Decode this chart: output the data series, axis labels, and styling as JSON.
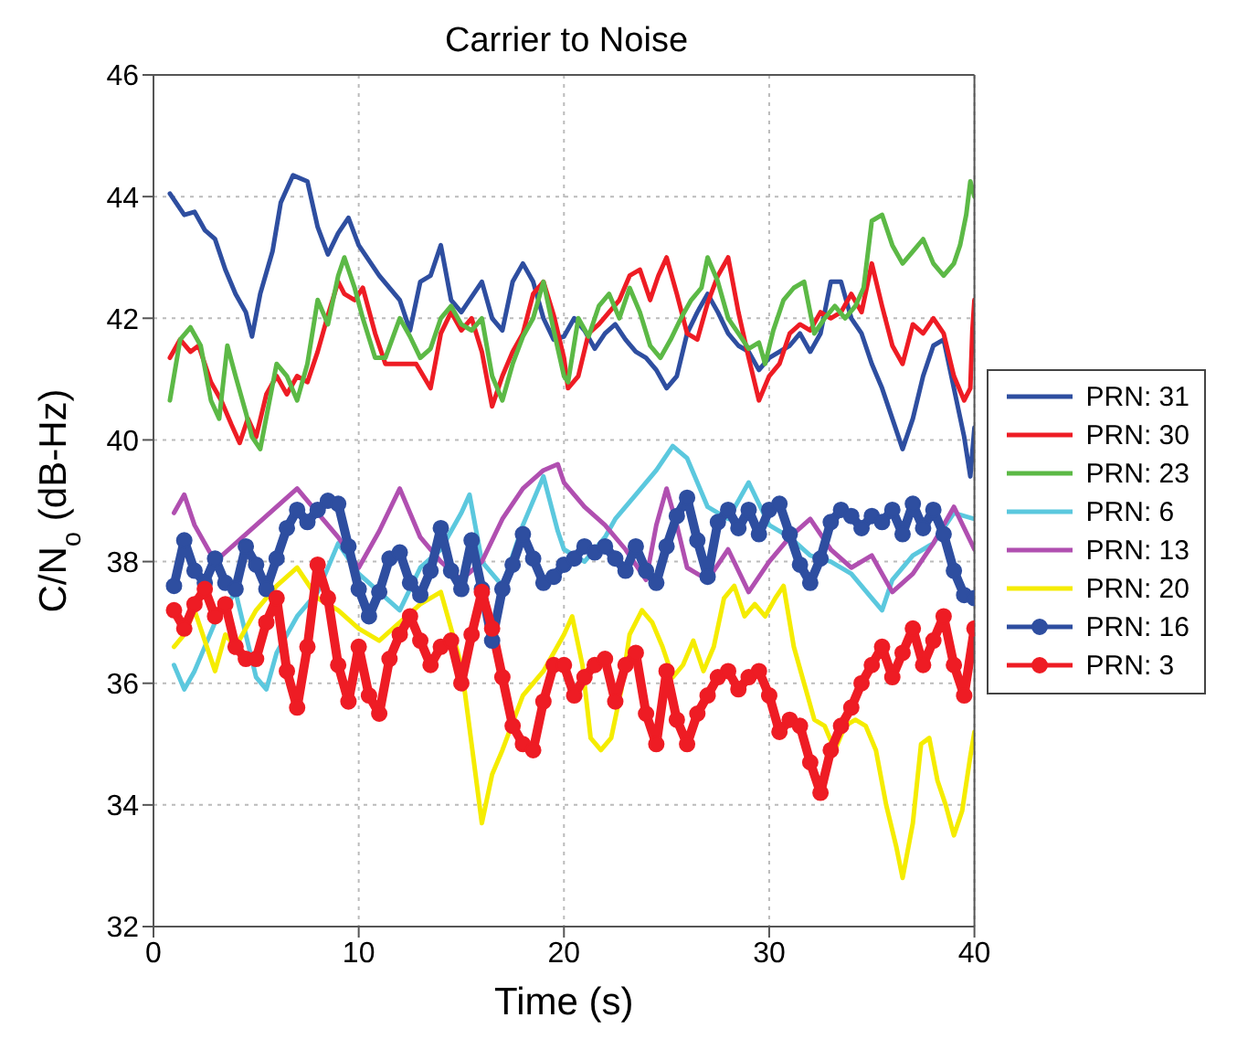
{
  "chart_data": {
    "type": "line",
    "title": "Carrier to Noise",
    "xlabel": "Time (s)",
    "ylabel": "C/N$_{o}$ (dB-Hz)",
    "xlim": [
      0,
      40
    ],
    "xticks": [
      0,
      10,
      20,
      30,
      40
    ],
    "ylim": [
      32,
      46
    ],
    "yticks": [
      32,
      34,
      36,
      38,
      40,
      42,
      44,
      46
    ],
    "grid": true,
    "legend": "right",
    "marker": "none",
    "series": [
      {
        "name": "PRN: 31",
        "color": "#2e4ea0",
        "x": [
          0.8,
          1.5,
          2,
          2.5,
          3,
          3.5,
          4,
          4.5,
          4.8,
          5.2,
          5.8,
          6.2,
          6.8,
          7.5,
          8,
          8.5,
          9,
          9.5,
          10,
          11,
          12,
          12.5,
          13,
          13.5,
          14,
          14.5,
          15,
          16,
          16.5,
          17,
          17.5,
          18,
          18.5,
          19,
          19.5,
          20,
          20.5,
          21,
          21.5,
          22,
          22.5,
          23,
          23.5,
          24,
          24.5,
          25,
          25.5,
          26,
          26.5,
          27,
          27.5,
          28,
          28.5,
          29,
          29.5,
          30,
          31,
          31.5,
          32,
          32.5,
          33,
          33.5,
          34,
          34.5,
          35,
          35.5,
          36,
          36.5,
          37,
          37.5,
          38,
          38.5,
          39,
          39.5,
          39.8,
          40
        ],
        "values": [
          44.05,
          43.7,
          43.75,
          43.45,
          43.3,
          42.8,
          42.4,
          42.1,
          41.7,
          42.4,
          43.1,
          43.9,
          44.35,
          44.25,
          43.5,
          43.05,
          43.4,
          43.65,
          43.2,
          42.7,
          42.3,
          41.8,
          42.6,
          42.7,
          43.2,
          42.3,
          42.1,
          42.6,
          42.0,
          41.8,
          42.6,
          42.9,
          42.6,
          42.0,
          41.65,
          41.7,
          42.0,
          41.8,
          41.5,
          41.75,
          41.9,
          41.65,
          41.45,
          41.35,
          41.15,
          40.85,
          41.05,
          41.75,
          42.1,
          42.4,
          42.1,
          41.75,
          41.55,
          41.45,
          41.15,
          41.35,
          41.55,
          41.75,
          41.45,
          41.75,
          42.6,
          42.6,
          42.0,
          41.75,
          41.25,
          40.85,
          40.35,
          39.85,
          40.35,
          41.05,
          41.55,
          41.65,
          40.85,
          40.05,
          39.4,
          40.2
        ]
      },
      {
        "name": "PRN: 30",
        "color": "#ee1c24",
        "x": [
          0.8,
          1.3,
          1.8,
          2.2,
          2.8,
          3.3,
          3.8,
          4.2,
          4.6,
          5,
          5.5,
          6,
          6.5,
          7,
          7.5,
          8,
          8.5,
          9,
          9.3,
          9.8,
          10.2,
          10.8,
          11.3,
          12,
          12.8,
          13.5,
          14,
          14.5,
          15,
          15.5,
          16,
          16.5,
          17,
          17.5,
          18,
          18.5,
          19,
          19.5,
          20,
          20.2,
          20.7,
          21.2,
          21.7,
          22.2,
          22.7,
          23.2,
          23.7,
          24.2,
          24.6,
          25,
          25.5,
          26,
          26.5,
          27,
          27.5,
          28,
          28.5,
          29,
          29.5,
          30,
          30.5,
          31,
          31.5,
          32,
          32.5,
          33,
          33.5,
          34,
          34.5,
          35,
          35.5,
          36,
          36.5,
          37,
          37.5,
          38,
          38.5,
          39,
          39.5,
          39.8,
          39.9,
          40
        ],
        "values": [
          41.35,
          41.65,
          41.45,
          41.55,
          40.95,
          40.65,
          40.25,
          39.95,
          40.35,
          40.05,
          40.75,
          41.05,
          40.75,
          41.05,
          40.95,
          41.45,
          42.05,
          42.6,
          42.4,
          42.3,
          42.5,
          41.75,
          41.25,
          41.25,
          41.25,
          40.85,
          41.75,
          42.1,
          41.8,
          42.0,
          41.45,
          40.55,
          41.05,
          41.45,
          41.75,
          42.4,
          42.6,
          42.05,
          41.35,
          40.85,
          41.05,
          41.75,
          41.9,
          42.1,
          42.3,
          42.7,
          42.8,
          42.3,
          42.7,
          43.0,
          42.4,
          41.75,
          41.65,
          42.25,
          42.7,
          43.0,
          42.1,
          41.35,
          40.65,
          41.05,
          41.25,
          41.75,
          41.9,
          41.8,
          42.1,
          42.0,
          42.1,
          42.4,
          42.1,
          42.9,
          42.2,
          41.55,
          41.25,
          41.9,
          41.75,
          42.0,
          41.75,
          41.05,
          40.65,
          40.85,
          41.8,
          42.3
        ]
      },
      {
        "name": "PRN: 23",
        "color": "#5cb946",
        "x": [
          0.8,
          1.3,
          1.8,
          2.3,
          2.8,
          3.2,
          3.6,
          4,
          4.5,
          4.8,
          5.2,
          5.6,
          6,
          6.5,
          7,
          7.5,
          8,
          8.5,
          9,
          9.3,
          9.8,
          10.2,
          10.8,
          11.3,
          12,
          12.5,
          13,
          13.5,
          14,
          14.5,
          15,
          15.5,
          16,
          16.5,
          17,
          17.5,
          18,
          18.5,
          19,
          19.5,
          20,
          20.2,
          20.7,
          21.2,
          21.7,
          22.2,
          22.7,
          23.2,
          23.7,
          24.2,
          24.7,
          25.2,
          25.7,
          26.2,
          26.7,
          27,
          27.5,
          28,
          28.5,
          29,
          29.5,
          29.8,
          30.2,
          30.7,
          31.2,
          31.7,
          32.2,
          32.7,
          33.2,
          33.7,
          34.2,
          34.6,
          35,
          35.5,
          36,
          36.5,
          37,
          37.5,
          38,
          38.5,
          39,
          39.3,
          39.6,
          39.8,
          40
        ],
        "values": [
          40.65,
          41.65,
          41.85,
          41.55,
          40.65,
          40.35,
          41.55,
          41.05,
          40.45,
          40.05,
          39.85,
          40.55,
          41.25,
          41.05,
          40.65,
          41.25,
          42.3,
          41.9,
          42.7,
          43.0,
          42.5,
          42.0,
          41.35,
          41.35,
          42.0,
          41.7,
          41.35,
          41.5,
          42.0,
          42.2,
          41.9,
          41.8,
          42.0,
          41.05,
          40.65,
          41.25,
          41.7,
          42.0,
          42.6,
          41.8,
          41.05,
          40.95,
          42.0,
          41.7,
          42.2,
          42.4,
          42.0,
          42.5,
          42.1,
          41.55,
          41.35,
          41.65,
          42.0,
          42.3,
          42.5,
          43.0,
          42.6,
          42.0,
          41.75,
          41.5,
          41.6,
          41.25,
          41.8,
          42.3,
          42.5,
          42.6,
          41.75,
          42.0,
          42.2,
          42.0,
          42.2,
          42.5,
          43.6,
          43.7,
          43.2,
          42.9,
          43.1,
          43.3,
          42.9,
          42.7,
          42.9,
          43.2,
          43.7,
          44.25,
          44.0
        ]
      },
      {
        "name": "PRN: 6",
        "color": "#5bc8de",
        "x": [
          1,
          1.5,
          2,
          3,
          4,
          5,
          5.5,
          6,
          7,
          8,
          9,
          10,
          11,
          12,
          13,
          14,
          15,
          15.4,
          16,
          17,
          18,
          19,
          19.7,
          20,
          21,
          22,
          22.5,
          23.5,
          24.5,
          25.3,
          26,
          27,
          28,
          29,
          30,
          31,
          32,
          33,
          34,
          35,
          35.5,
          36,
          37,
          38,
          39,
          40
        ],
        "values": [
          36.3,
          35.9,
          36.2,
          37.0,
          37.5,
          36.1,
          35.9,
          36.5,
          37.1,
          37.5,
          38.3,
          37.8,
          37.5,
          37.2,
          37.9,
          38.2,
          38.8,
          39.1,
          38.0,
          37.6,
          38.6,
          39.4,
          38.5,
          38.2,
          38.0,
          38.4,
          38.7,
          39.1,
          39.5,
          39.9,
          39.7,
          38.9,
          38.7,
          39.3,
          38.6,
          38.4,
          38.1,
          38.0,
          37.8,
          37.4,
          37.2,
          37.7,
          38.1,
          38.3,
          38.8,
          38.7
        ]
      },
      {
        "name": "PRN: 13",
        "color": "#b04fb0",
        "x": [
          1,
          1.5,
          2,
          3,
          4,
          5,
          6,
          7,
          8,
          9,
          10,
          11,
          12,
          13,
          14,
          15,
          16,
          17,
          18,
          19,
          19.7,
          20,
          21,
          22,
          23,
          24,
          24.5,
          25,
          25.5,
          26,
          27,
          28,
          29,
          30,
          31,
          32,
          33,
          34,
          35,
          36,
          37,
          38,
          39,
          40
        ],
        "values": [
          38.8,
          39.1,
          38.6,
          38.0,
          38.3,
          38.6,
          38.9,
          39.2,
          38.8,
          38.4,
          37.9,
          38.5,
          39.2,
          38.4,
          38.0,
          37.7,
          38.0,
          38.7,
          39.2,
          39.5,
          39.6,
          39.3,
          38.9,
          38.6,
          38.2,
          37.7,
          38.6,
          39.2,
          38.6,
          37.9,
          37.7,
          38.2,
          37.5,
          38.0,
          38.4,
          38.7,
          38.2,
          37.9,
          38.1,
          37.5,
          37.8,
          38.3,
          38.9,
          38.2
        ]
      },
      {
        "name": "PRN: 20",
        "color": "#f5ec00",
        "x": [
          1,
          1.5,
          2,
          2.5,
          3,
          3.5,
          4,
          5,
          6,
          7,
          8,
          9,
          10,
          11,
          12,
          13,
          14,
          15,
          15.5,
          16,
          16.5,
          17,
          18,
          19,
          20,
          20.4,
          20.9,
          21.3,
          21.8,
          22.3,
          22.8,
          23.2,
          23.8,
          24.3,
          24.8,
          25.3,
          25.8,
          26.3,
          26.8,
          27.3,
          27.8,
          28.3,
          28.8,
          29.3,
          29.8,
          30.3,
          30.7,
          31.2,
          31.7,
          32.2,
          32.7,
          33.2,
          33.7,
          34.2,
          34.7,
          35.2,
          35.7,
          36.2,
          36.5,
          37,
          37.4,
          37.8,
          38.2,
          38.6,
          39,
          39.4,
          39.8,
          40
        ],
        "values": [
          36.6,
          36.8,
          37.2,
          36.7,
          36.2,
          36.8,
          36.6,
          37.2,
          37.6,
          37.9,
          37.4,
          37.2,
          36.9,
          36.7,
          37.0,
          37.3,
          37.5,
          36.3,
          35.0,
          33.7,
          34.5,
          34.9,
          35.8,
          36.2,
          36.8,
          37.1,
          36.3,
          35.1,
          34.9,
          35.1,
          35.9,
          36.8,
          37.2,
          37.0,
          36.6,
          36.1,
          36.3,
          36.7,
          36.2,
          36.6,
          37.4,
          37.6,
          37.1,
          37.3,
          37.1,
          37.4,
          37.6,
          36.6,
          36.0,
          35.4,
          35.3,
          34.9,
          35.3,
          35.4,
          35.3,
          34.9,
          34.0,
          33.3,
          32.8,
          33.7,
          35.0,
          35.1,
          34.4,
          34.0,
          33.5,
          33.9,
          34.8,
          35.2
        ]
      },
      {
        "name": "PRN: 16",
        "color": "#2e4ea0",
        "marker": "circle",
        "x": [
          1,
          1.5,
          2,
          2.5,
          3,
          3.5,
          4,
          4.5,
          5,
          5.5,
          6,
          6.5,
          7,
          7.5,
          8,
          8.5,
          9,
          9.5,
          10,
          10.5,
          11,
          11.5,
          12,
          12.5,
          13,
          13.5,
          14,
          14.5,
          15,
          15.5,
          16,
          16.5,
          17,
          17.5,
          18,
          18.5,
          19,
          19.5,
          20,
          20.5,
          21,
          21.5,
          22,
          22.5,
          23,
          23.5,
          24,
          24.5,
          25,
          25.5,
          26,
          26.5,
          27,
          27.5,
          28,
          28.5,
          29,
          29.5,
          30,
          30.5,
          31,
          31.5,
          32,
          32.5,
          33,
          33.5,
          34,
          34.5,
          35,
          35.5,
          36,
          36.5,
          37,
          37.5,
          38,
          38.5,
          39,
          39.5,
          40
        ],
        "values": [
          37.6,
          38.35,
          37.85,
          37.65,
          38.05,
          37.65,
          37.55,
          38.25,
          37.95,
          37.55,
          38.05,
          38.55,
          38.85,
          38.65,
          38.85,
          39.0,
          38.95,
          38.25,
          37.55,
          37.1,
          37.5,
          38.05,
          38.15,
          37.65,
          37.45,
          37.85,
          38.55,
          37.85,
          37.55,
          38.35,
          37.55,
          36.7,
          37.55,
          37.95,
          38.45,
          38.05,
          37.65,
          37.75,
          37.95,
          38.05,
          38.25,
          38.15,
          38.25,
          38.05,
          37.85,
          38.25,
          37.85,
          37.65,
          38.25,
          38.75,
          39.05,
          38.35,
          37.75,
          38.65,
          38.85,
          38.55,
          38.85,
          38.45,
          38.85,
          38.95,
          38.45,
          37.95,
          37.65,
          38.05,
          38.65,
          38.85,
          38.75,
          38.55,
          38.75,
          38.65,
          38.85,
          38.45,
          38.95,
          38.55,
          38.85,
          38.45,
          37.85,
          37.45,
          37.4
        ]
      },
      {
        "name": "PRN: 3",
        "color": "#ee1c24",
        "marker": "circle",
        "x": [
          1,
          1.5,
          2,
          2.5,
          3,
          3.5,
          4,
          4.5,
          5,
          5.5,
          6,
          6.5,
          7,
          7.5,
          8,
          8.5,
          9,
          9.5,
          10,
          10.5,
          11,
          11.5,
          12,
          12.5,
          13,
          13.5,
          14,
          14.5,
          15,
          15.5,
          16,
          16.5,
          17,
          17.5,
          18,
          18.5,
          19,
          19.5,
          20,
          20.5,
          21,
          21.5,
          22,
          22.5,
          23,
          23.5,
          24,
          24.5,
          25,
          25.5,
          26,
          26.5,
          27,
          27.5,
          28,
          28.5,
          29,
          29.5,
          30,
          30.5,
          31,
          31.5,
          32,
          32.5,
          33,
          33.5,
          34,
          34.5,
          35,
          35.5,
          36,
          36.5,
          37,
          37.5,
          38,
          38.5,
          39,
          39.5,
          40
        ],
        "values": [
          37.2,
          36.9,
          37.3,
          37.55,
          37.1,
          37.3,
          36.6,
          36.4,
          36.4,
          37.0,
          37.4,
          36.2,
          35.6,
          36.6,
          37.95,
          37.4,
          36.3,
          35.7,
          36.6,
          35.8,
          35.5,
          36.4,
          36.8,
          37.1,
          36.7,
          36.3,
          36.6,
          36.7,
          36.0,
          36.8,
          37.5,
          36.9,
          36.1,
          35.3,
          35.0,
          34.9,
          35.7,
          36.3,
          36.3,
          35.8,
          36.1,
          36.3,
          36.4,
          35.7,
          36.3,
          36.5,
          35.5,
          35.0,
          36.2,
          35.4,
          35.0,
          35.5,
          35.8,
          36.1,
          36.2,
          35.9,
          36.1,
          36.2,
          35.8,
          35.2,
          35.4,
          35.3,
          34.7,
          34.2,
          34.9,
          35.3,
          35.6,
          36.0,
          36.3,
          36.6,
          36.1,
          36.5,
          36.9,
          36.3,
          36.7,
          37.1,
          36.3,
          35.8,
          36.9
        ]
      }
    ]
  }
}
